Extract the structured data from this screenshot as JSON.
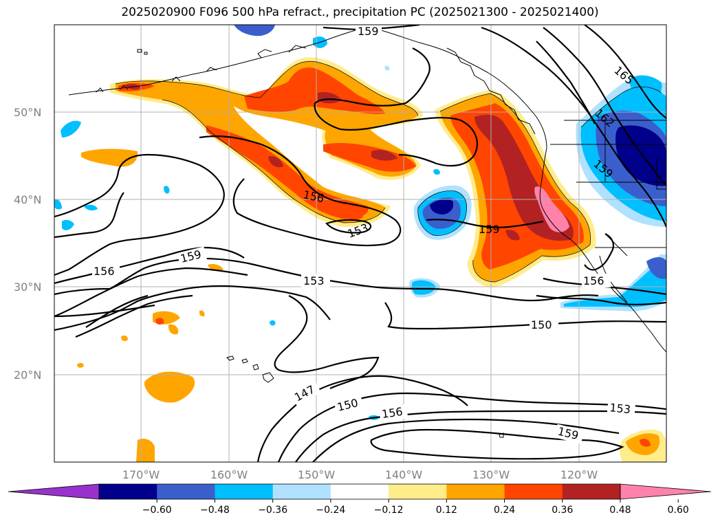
{
  "title": "2025020900 F096 500 hPa refract., precipitation PC (2025021300 - 2025021400)",
  "lat_labels": [
    "50°N",
    "40°N",
    "30°N",
    "20°N"
  ],
  "lon_labels": [
    "170°W",
    "160°W",
    "150°W",
    "140°W",
    "130°W",
    "120°W"
  ],
  "contour_labels": [
    "159",
    "165",
    "162",
    "159",
    "156",
    "153",
    "159",
    "156",
    "159",
    "153",
    "150",
    "156",
    "147",
    "150",
    "156",
    "153",
    "159"
  ],
  "colorbar": {
    "ticks": [
      "−0.60",
      "−0.48",
      "−0.36",
      "−0.24",
      "−0.12",
      "0.12",
      "0.24",
      "0.36",
      "0.48",
      "0.60"
    ],
    "colors": [
      "#9932cc",
      "#00008b",
      "#3a5fcd",
      "#00bfff",
      "#b0e2ff",
      "#ffffff",
      "#ffec8b",
      "#ffa500",
      "#ff4500",
      "#b22222",
      "#ff82ab"
    ]
  },
  "colors": {
    "pink": "#ff82ab",
    "darkred": "#b22222",
    "red": "#ff4500",
    "orange": "#ffa500",
    "yellow": "#ffec8b",
    "lightblue": "#b0e2ff",
    "cyan": "#00bfff",
    "blue": "#3a5fcd",
    "navy": "#00008b",
    "grid": "#b0b0b0",
    "coast": "#000000"
  }
}
